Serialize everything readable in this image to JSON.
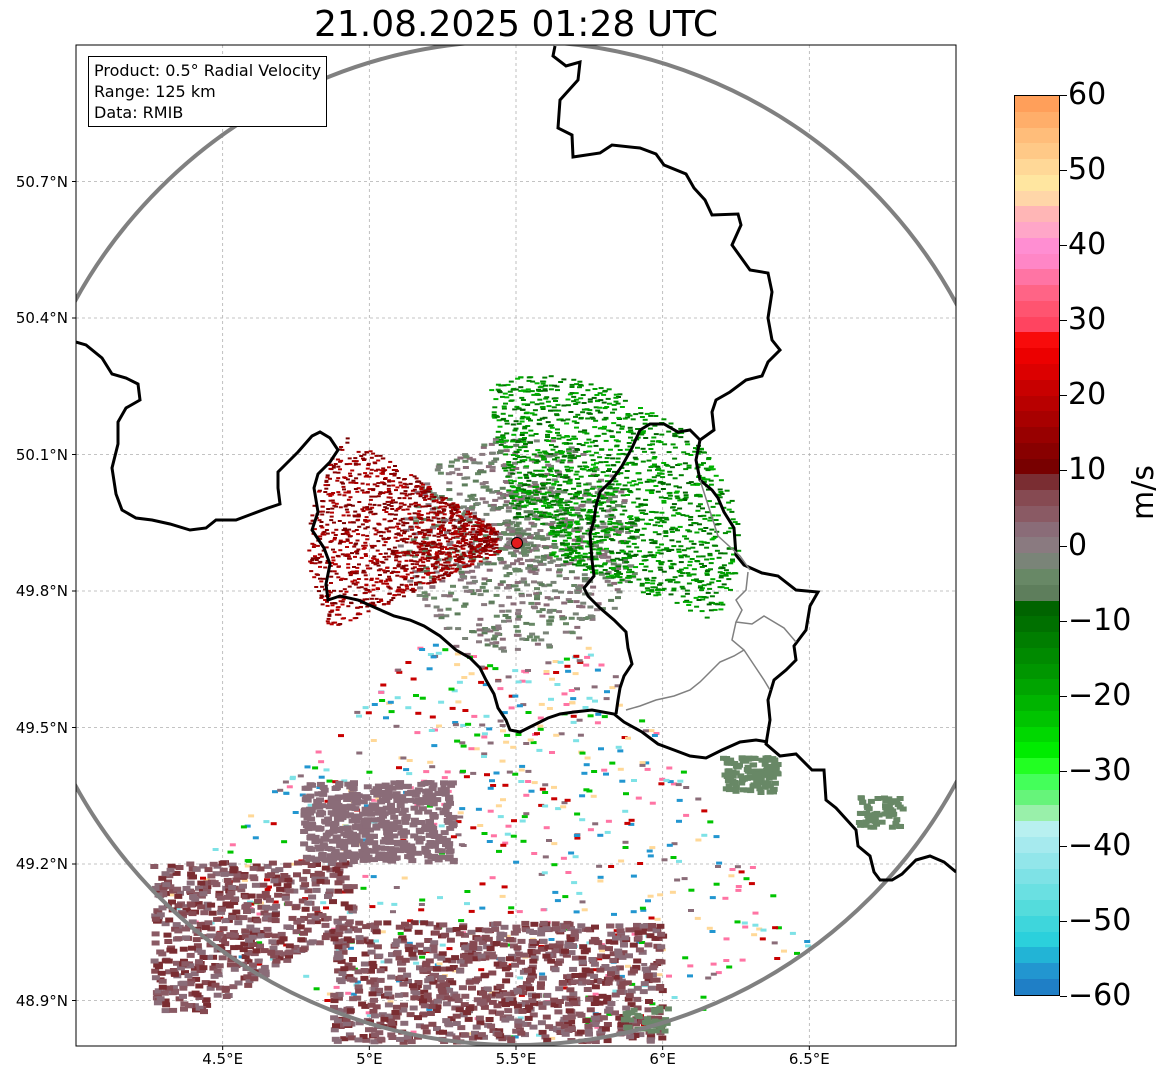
{
  "title": "21.08.2025 01:28 UTC",
  "info_box": {
    "product": "Product: 0.5° Radial Velocity",
    "range": "Range: 125 km",
    "data": "Data: RMIB"
  },
  "map": {
    "lat_labels": [
      {
        "text": "50.7°N",
        "lat": 50.7
      },
      {
        "text": "50.4°N",
        "lat": 50.4
      },
      {
        "text": "50.1°N",
        "lat": 50.1
      },
      {
        "text": "49.8°N",
        "lat": 49.8
      },
      {
        "text": "49.5°N",
        "lat": 49.5
      },
      {
        "text": "49.2°N",
        "lat": 49.2
      },
      {
        "text": "48.9°N",
        "lat": 48.9
      }
    ],
    "lon_labels": [
      {
        "text": "4.5°E",
        "lon": 4.5
      },
      {
        "text": "5°E",
        "lon": 5.0
      },
      {
        "text": "5.5°E",
        "lon": 5.5
      },
      {
        "text": "6°E",
        "lon": 6.0
      },
      {
        "text": "6.5°E",
        "lon": 6.5
      }
    ],
    "extent": {
      "lon_min": 4.0,
      "lon_max": 7.0,
      "lat_min": 48.8,
      "lat_max": 51.0
    },
    "radar_site": {
      "lon": 5.506,
      "lat": 49.914
    },
    "range_ring_color": "#808080",
    "border_color": "#000000",
    "grid": true
  },
  "colorbar": {
    "unit": "m/s",
    "min": -60,
    "max": 60,
    "ticks": [
      "60",
      "50",
      "40",
      "30",
      "20",
      "10",
      "0",
      "−10",
      "−20",
      "−30",
      "−40",
      "−50",
      "−60"
    ],
    "colors_top_to_bottom": [
      "#ff9f5a",
      "#ffae6a",
      "#ffbd7a",
      "#ffc987",
      "#ffd897",
      "#ffe6a0",
      "#ffd6a8",
      "#ffb6b6",
      "#ffa6c8",
      "#ff8ed2",
      "#ff86c6",
      "#ff74a4",
      "#ff6486",
      "#ff5470",
      "#ff4460",
      "#f80b0b",
      "#ec0000",
      "#dc0000",
      "#c80000",
      "#b80000",
      "#a80000",
      "#980000",
      "#880000",
      "#780000",
      "#7a2d32",
      "#864a52",
      "#8a5a64",
      "#8a6c78",
      "#8a7a80",
      "#7a8478",
      "#688866",
      "#5e7e5c",
      "#006400",
      "#007000",
      "#007e00",
      "#008a00",
      "#009600",
      "#00a400",
      "#00b400",
      "#00c400",
      "#00d800",
      "#00ec00",
      "#22ff22",
      "#44ff5a",
      "#66f47a",
      "#99f0aa",
      "#b8f0f0",
      "#a6eaee",
      "#92e6ea",
      "#7ee2e6",
      "#6ae0e2",
      "#54dcdc",
      "#3ed6dc",
      "#2bd0dc",
      "#22b4d6",
      "#2296d0",
      "#1f7fc6"
    ]
  }
}
